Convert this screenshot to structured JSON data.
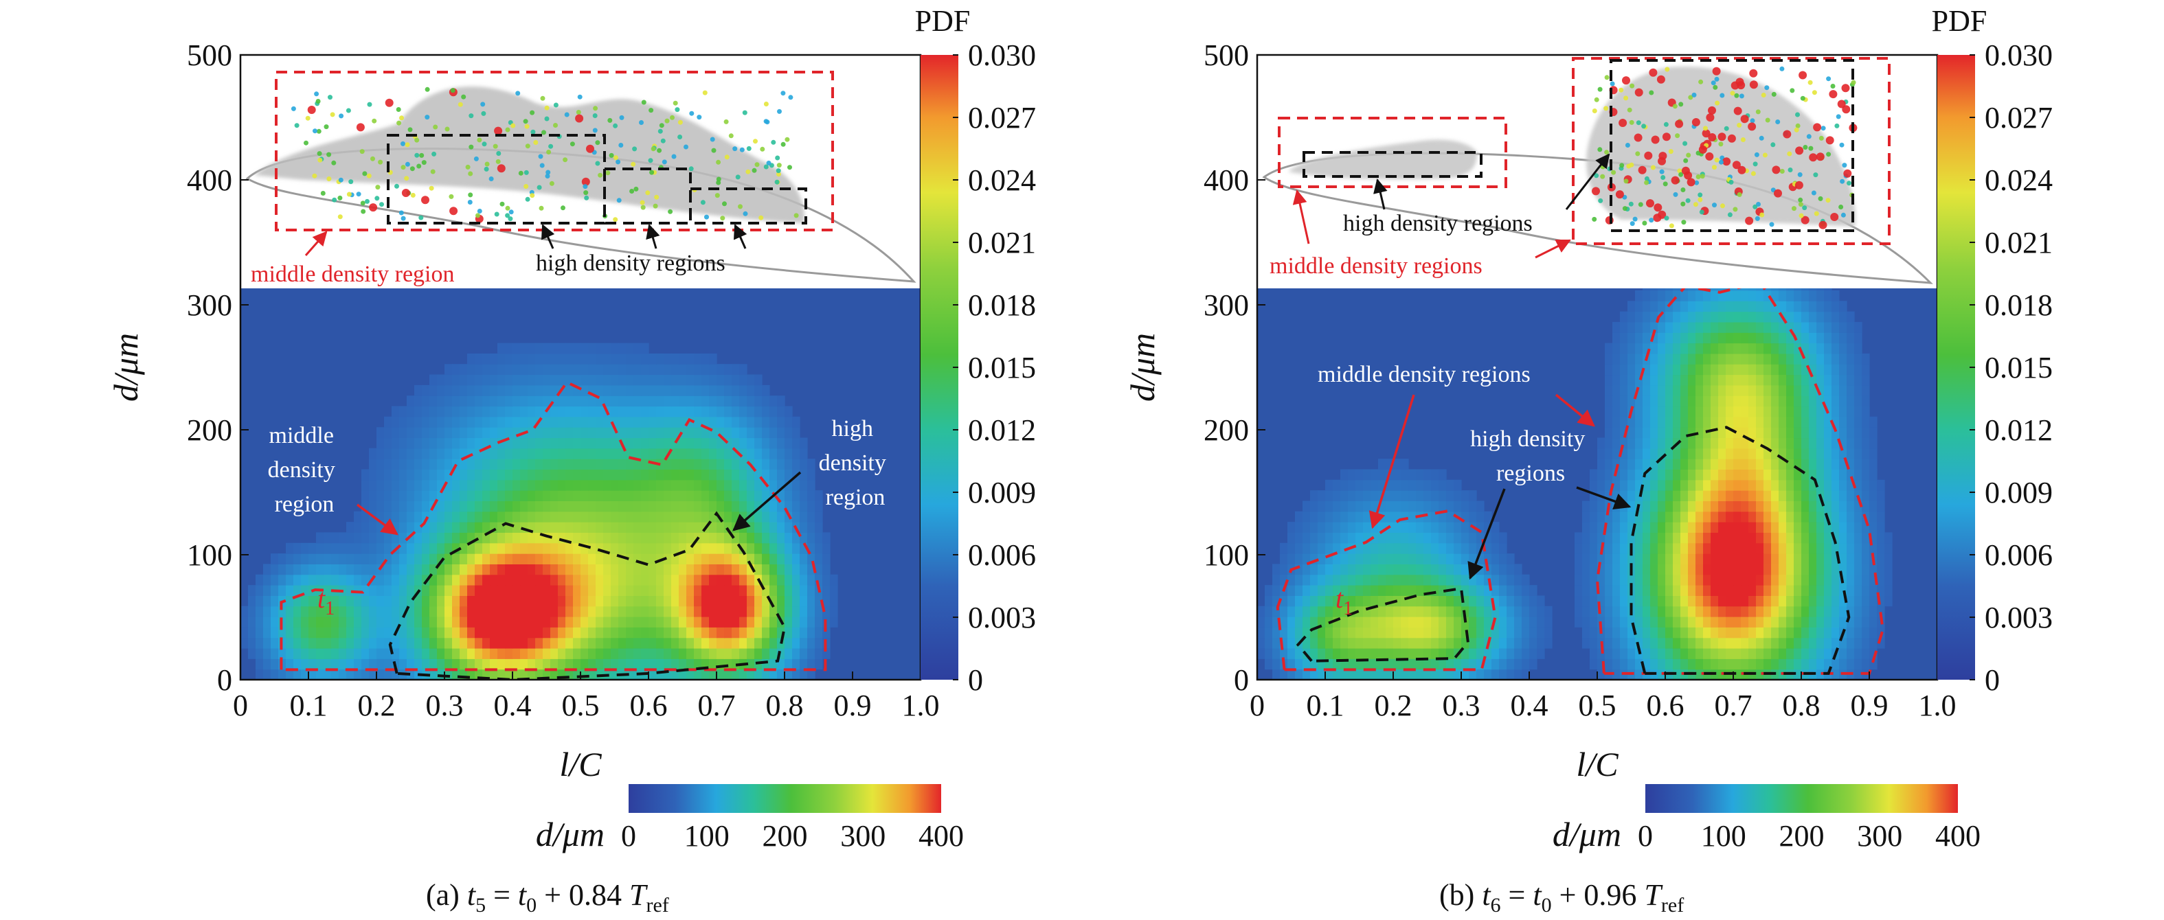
{
  "chart_data": [
    {
      "type": "heatmap",
      "panel": "a",
      "caption": {
        "prefix": "(a)",
        "t": "t",
        "t_sub": "5",
        "eq": " = ",
        "t0": "t",
        "t0_sub": "0",
        "plus": " + 0.84 ",
        "T": "T",
        "T_sub": "ref"
      },
      "xlabel": "l/C",
      "ylabel": "d/μm",
      "xlim": [
        0,
        1.0
      ],
      "ylim": [
        0,
        500
      ],
      "x_ticks": [
        "0",
        "0.1",
        "0.2",
        "0.3",
        "0.4",
        "0.5",
        "0.6",
        "0.7",
        "0.8",
        "0.9",
        "1.0"
      ],
      "y_ticks": [
        "0",
        "100",
        "200",
        "300",
        "400",
        "500"
      ],
      "colorbar": {
        "title": "PDF",
        "range": [
          0,
          0.03
        ],
        "ticks": [
          "0",
          "0.003",
          "0.006",
          "0.009",
          "0.012",
          "0.015",
          "0.018",
          "0.021",
          "0.024",
          "0.027",
          "0.030"
        ]
      },
      "diameter_colorbar": {
        "label": "d/μm",
        "range": [
          0,
          400
        ],
        "ticks": [
          "0",
          "100",
          "200",
          "300",
          "400"
        ]
      },
      "middle_density_contour": [
        [
          0.06,
          8
        ],
        [
          0.06,
          62
        ],
        [
          0.11,
          72
        ],
        [
          0.18,
          70
        ],
        [
          0.22,
          100
        ],
        [
          0.27,
          125
        ],
        [
          0.32,
          175
        ],
        [
          0.38,
          190
        ],
        [
          0.43,
          200
        ],
        [
          0.48,
          238
        ],
        [
          0.53,
          225
        ],
        [
          0.57,
          178
        ],
        [
          0.62,
          172
        ],
        [
          0.66,
          208
        ],
        [
          0.7,
          198
        ],
        [
          0.75,
          172
        ],
        [
          0.8,
          138
        ],
        [
          0.84,
          98
        ],
        [
          0.86,
          50
        ],
        [
          0.86,
          8
        ],
        [
          0.06,
          8
        ]
      ],
      "high_density_contour": [
        [
          0.23,
          5
        ],
        [
          0.22,
          28
        ],
        [
          0.25,
          62
        ],
        [
          0.3,
          98
        ],
        [
          0.39,
          125
        ],
        [
          0.45,
          115
        ],
        [
          0.52,
          105
        ],
        [
          0.6,
          92
        ],
        [
          0.66,
          104
        ],
        [
          0.7,
          133
        ],
        [
          0.74,
          102
        ],
        [
          0.77,
          72
        ],
        [
          0.8,
          42
        ],
        [
          0.79,
          15
        ],
        [
          0.6,
          5
        ],
        [
          0.4,
          0
        ],
        [
          0.23,
          5
        ]
      ],
      "hotspots": [
        {
          "x": 0.38,
          "y": 52,
          "pdf": 0.03,
          "sx": 0.075,
          "sy": 38
        },
        {
          "x": 0.72,
          "y": 58,
          "pdf": 0.028,
          "sx": 0.055,
          "sy": 35
        },
        {
          "x": 0.53,
          "y": 70,
          "pdf": 0.015,
          "sx": 0.12,
          "sy": 55
        },
        {
          "x": 0.47,
          "y": 150,
          "pdf": 0.009,
          "sx": 0.13,
          "sy": 55
        },
        {
          "x": 0.68,
          "y": 150,
          "pdf": 0.009,
          "sx": 0.07,
          "sy": 45
        },
        {
          "x": 0.12,
          "y": 45,
          "pdf": 0.013,
          "sx": 0.05,
          "sy": 28
        }
      ],
      "annotations": {
        "t1": "t",
        "t1_sub": "1",
        "middle_left": [
          "middle",
          "density",
          "region"
        ],
        "high_right": [
          "high",
          "density",
          "region"
        ],
        "inset_red": "middle density region",
        "inset_black": "high density regions"
      }
    },
    {
      "type": "heatmap",
      "panel": "b",
      "caption": {
        "prefix": "(b)",
        "t": "t",
        "t_sub": "6",
        "eq": " = ",
        "t0": "t",
        "t0_sub": "0",
        "plus": " + 0.96 ",
        "T": "T",
        "T_sub": "ref"
      },
      "xlabel": "l/C",
      "ylabel": "d/μm",
      "xlim": [
        0,
        1.0
      ],
      "ylim": [
        0,
        500
      ],
      "x_ticks": [
        "0",
        "0.1",
        "0.2",
        "0.3",
        "0.4",
        "0.5",
        "0.6",
        "0.7",
        "0.8",
        "0.9",
        "1.0"
      ],
      "y_ticks": [
        "0",
        "100",
        "200",
        "300",
        "400",
        "500"
      ],
      "colorbar": {
        "title": "PDF",
        "range": [
          0,
          0.03
        ],
        "ticks": [
          "0",
          "0.003",
          "0.006",
          "0.009",
          "0.012",
          "0.015",
          "0.018",
          "0.021",
          "0.024",
          "0.027",
          "0.030"
        ]
      },
      "diameter_colorbar": {
        "label": "d/μm",
        "range": [
          0,
          400
        ],
        "ticks": [
          "0",
          "100",
          "200",
          "300",
          "400"
        ]
      },
      "middle_density_contour": [
        [
          0.04,
          8
        ],
        [
          0.03,
          58
        ],
        [
          0.05,
          88
        ],
        [
          0.16,
          110
        ],
        [
          0.21,
          128
        ],
        [
          0.28,
          135
        ],
        [
          0.33,
          118
        ],
        [
          0.35,
          50
        ],
        [
          0.33,
          8
        ],
        [
          0.04,
          8
        ]
      ],
      "middle_density_contour_2": [
        [
          0.51,
          5
        ],
        [
          0.5,
          80
        ],
        [
          0.52,
          150
        ],
        [
          0.55,
          215
        ],
        [
          0.59,
          290
        ],
        [
          0.63,
          315
        ],
        [
          0.68,
          310
        ],
        [
          0.74,
          318
        ],
        [
          0.79,
          275
        ],
        [
          0.85,
          200
        ],
        [
          0.9,
          120
        ],
        [
          0.92,
          40
        ],
        [
          0.9,
          5
        ],
        [
          0.51,
          5
        ]
      ],
      "high_density_contour": [
        [
          0.08,
          15
        ],
        [
          0.06,
          28
        ],
        [
          0.08,
          40
        ],
        [
          0.15,
          55
        ],
        [
          0.24,
          68
        ],
        [
          0.3,
          73
        ],
        [
          0.31,
          30
        ],
        [
          0.29,
          17
        ],
        [
          0.08,
          15
        ]
      ],
      "high_density_contour_2": [
        [
          0.57,
          5
        ],
        [
          0.55,
          50
        ],
        [
          0.55,
          110
        ],
        [
          0.57,
          165
        ],
        [
          0.63,
          195
        ],
        [
          0.69,
          202
        ],
        [
          0.75,
          185
        ],
        [
          0.82,
          160
        ],
        [
          0.85,
          110
        ],
        [
          0.87,
          50
        ],
        [
          0.84,
          5
        ],
        [
          0.57,
          5
        ]
      ],
      "hotspots": [
        {
          "x": 0.7,
          "y": 85,
          "pdf": 0.032,
          "sx": 0.085,
          "sy": 62
        },
        {
          "x": 0.72,
          "y": 200,
          "pdf": 0.012,
          "sx": 0.07,
          "sy": 55
        },
        {
          "x": 0.7,
          "y": 250,
          "pdf": 0.01,
          "sx": 0.08,
          "sy": 40
        },
        {
          "x": 0.25,
          "y": 40,
          "pdf": 0.018,
          "sx": 0.07,
          "sy": 25
        },
        {
          "x": 0.12,
          "y": 35,
          "pdf": 0.012,
          "sx": 0.05,
          "sy": 25
        },
        {
          "x": 0.2,
          "y": 90,
          "pdf": 0.007,
          "sx": 0.08,
          "sy": 40
        }
      ],
      "annotations": {
        "t1": "t",
        "t1_sub": "1",
        "middle_top": "middle density regions",
        "high_mid": [
          "high density",
          "regions"
        ],
        "inset_red": "middle density regions",
        "inset_black": "high density regions"
      }
    }
  ],
  "colors": {
    "background_plot": "#2e55a8",
    "middle_contour": "#e0242a",
    "high_contour": "#111111",
    "colormap": [
      "#2e3f9e",
      "#2f63b8",
      "#27a7dd",
      "#2bbf9a",
      "#4cbf3c",
      "#8fd13d",
      "#e4e53a",
      "#f29a2e",
      "#e3262a"
    ]
  }
}
